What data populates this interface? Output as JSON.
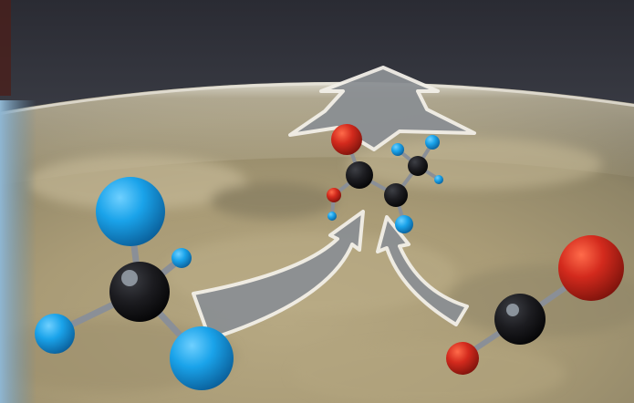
{
  "scene": {
    "kind": "illustration",
    "elements": [
      "earth-horizon-background",
      "methane-molecule",
      "carbon-monoxide-molecule",
      "small-organic-molecule",
      "reaction-arrows"
    ]
  },
  "colors": {
    "space_top": "#2f3038",
    "space_mid": "#53565f",
    "horizon_glow": "#d9d6c9",
    "land_light": "#c9b88f",
    "land_mid": "#a99a77",
    "land_dark": "#7b7359",
    "ocean_left": "#7aa6c7",
    "hydrogen_blue": "#1aa3ea",
    "carbon_black": "#1c1c20",
    "oxygen_red": "#d32a1d",
    "bond_gray": "#8a8f97",
    "arrow_fill": "#8b8f93",
    "arrow_outline": "#f2efe8"
  },
  "icons": {
    "up_arrow": "up-arrow-icon",
    "curved_arrow_left": "curved-arrow-icon",
    "curved_arrow_right": "curved-arrow-icon"
  }
}
